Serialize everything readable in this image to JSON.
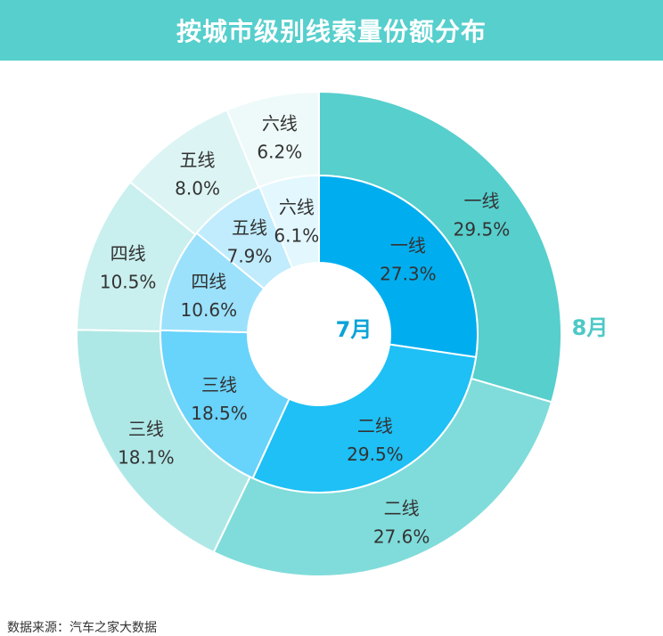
{
  "header": {
    "title": "按城市级别线索量份额分布"
  },
  "source": "数据来源：汽车之家大数据",
  "colors": {
    "header_bg": "#56cfcd",
    "inner_label": "#0aa3d8",
    "outer_label": "#4cc9c6"
  },
  "chart_data": {
    "type": "pie",
    "title": "按城市级别线索量份额分布",
    "rings": [
      {
        "name": "7月",
        "slices": [
          {
            "label": "一线",
            "value": 27.3,
            "display": "27.3%",
            "color": "#00aeef"
          },
          {
            "label": "二线",
            "value": 29.5,
            "display": "29.5%",
            "color": "#1ec0f5"
          },
          {
            "label": "三线",
            "value": 18.5,
            "display": "18.5%",
            "color": "#68d3fb"
          },
          {
            "label": "四线",
            "value": 10.6,
            "display": "10.6%",
            "color": "#9be1fc"
          },
          {
            "label": "五线",
            "value": 7.9,
            "display": "7.9%",
            "color": "#c0ecfd"
          },
          {
            "label": "六线",
            "value": 6.1,
            "display": "6.1%",
            "color": "#e2f7fe"
          }
        ]
      },
      {
        "name": "8月",
        "slices": [
          {
            "label": "一线",
            "value": 29.5,
            "display": "29.5%",
            "color": "#56cfcd"
          },
          {
            "label": "二线",
            "value": 27.6,
            "display": "27.6%",
            "color": "#80dcda"
          },
          {
            "label": "三线",
            "value": 18.1,
            "display": "18.1%",
            "color": "#aee8e6"
          },
          {
            "label": "四线",
            "value": 10.5,
            "display": "10.5%",
            "color": "#c9efee"
          },
          {
            "label": "五线",
            "value": 8.0,
            "display": "8.0%",
            "color": "#dcf5f4"
          },
          {
            "label": "六线",
            "value": 6.2,
            "display": "6.2%",
            "color": "#eefaf9"
          }
        ]
      }
    ]
  }
}
